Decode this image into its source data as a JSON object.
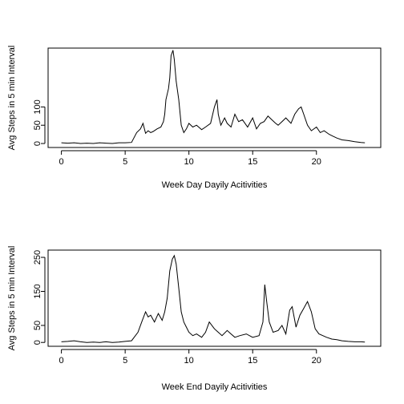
{
  "chart_data": [
    {
      "type": "line",
      "xlabel": "Week Day Dayily Acitivities",
      "ylabel": "Avg Steps in 5 min Interval",
      "xlim": [
        0,
        24
      ],
      "ylim": [
        0,
        250
      ],
      "xticks": [
        0,
        5,
        10,
        15,
        20
      ],
      "yticks": [
        0,
        50,
        100
      ],
      "grid": false,
      "series": [
        {
          "x": [
            0.0,
            0.5,
            1.0,
            1.5,
            2.0,
            2.5,
            3.0,
            3.5,
            4.0,
            4.5,
            5.0,
            5.5,
            5.9,
            6.2,
            6.4,
            6.6,
            6.8,
            7.0,
            7.2,
            7.5,
            7.8,
            8.0,
            8.1,
            8.2,
            8.4,
            8.5,
            8.6,
            8.75,
            8.85,
            9.0,
            9.2,
            9.4,
            9.6,
            9.8,
            10.0,
            10.3,
            10.6,
            11.0,
            11.3,
            11.7,
            12.0,
            12.2,
            12.3,
            12.5,
            12.8,
            13.0,
            13.3,
            13.6,
            13.9,
            14.2,
            14.6,
            15.0,
            15.3,
            15.6,
            15.9,
            16.2,
            16.5,
            16.8,
            17.0,
            17.3,
            17.6,
            18.0,
            18.3,
            18.6,
            18.8,
            19.0,
            19.3,
            19.6,
            20.0,
            20.3,
            20.6,
            21.0,
            21.3,
            21.6,
            22.0,
            22.5,
            23.0,
            23.5,
            23.8
          ],
          "y": [
            2,
            1,
            2,
            0,
            1,
            0,
            2,
            1,
            0,
            2,
            2,
            3,
            30,
            40,
            55,
            28,
            35,
            30,
            33,
            40,
            45,
            60,
            80,
            120,
            150,
            180,
            240,
            255,
            230,
            170,
            120,
            50,
            30,
            40,
            55,
            45,
            50,
            38,
            45,
            55,
            100,
            120,
            80,
            50,
            70,
            55,
            45,
            80,
            60,
            65,
            45,
            70,
            40,
            55,
            60,
            75,
            65,
            55,
            50,
            60,
            70,
            55,
            80,
            95,
            100,
            80,
            50,
            35,
            45,
            30,
            35,
            25,
            20,
            15,
            10,
            8,
            5,
            3,
            2
          ]
        }
      ]
    },
    {
      "type": "line",
      "xlabel": "Week End Dayily Acitivities",
      "ylabel": "Avg Steps in 5 min Interval",
      "xlim": [
        0,
        24
      ],
      "ylim": [
        0,
        260
      ],
      "xticks": [
        0,
        5,
        10,
        15,
        20
      ],
      "yticks": [
        0,
        50,
        150,
        250
      ],
      "grid": false,
      "series": [
        {
          "x": [
            0.0,
            0.5,
            1.0,
            1.5,
            2.0,
            2.5,
            3.0,
            3.5,
            4.0,
            4.5,
            5.0,
            5.5,
            6.0,
            6.3,
            6.6,
            6.8,
            7.0,
            7.3,
            7.6,
            7.9,
            8.1,
            8.3,
            8.5,
            8.7,
            8.85,
            9.0,
            9.2,
            9.4,
            9.6,
            9.8,
            10.0,
            10.3,
            10.6,
            11.0,
            11.3,
            11.6,
            12.0,
            12.3,
            12.6,
            13.0,
            13.3,
            13.6,
            14.0,
            14.5,
            15.0,
            15.5,
            15.8,
            15.95,
            16.1,
            16.3,
            16.6,
            17.0,
            17.3,
            17.6,
            17.9,
            18.1,
            18.4,
            18.7,
            19.0,
            19.3,
            19.6,
            19.9,
            20.2,
            20.5,
            20.8,
            21.2,
            21.6,
            22.0,
            22.5,
            23.0,
            23.5,
            23.8
          ],
          "y": [
            2,
            3,
            5,
            2,
            0,
            1,
            0,
            2,
            0,
            1,
            3,
            5,
            30,
            60,
            90,
            75,
            80,
            60,
            85,
            65,
            90,
            130,
            210,
            245,
            255,
            230,
            160,
            90,
            60,
            45,
            30,
            20,
            25,
            15,
            30,
            60,
            40,
            30,
            20,
            35,
            25,
            15,
            20,
            25,
            15,
            20,
            60,
            170,
            120,
            60,
            30,
            35,
            50,
            25,
            95,
            105,
            45,
            80,
            100,
            120,
            90,
            40,
            25,
            20,
            15,
            10,
            8,
            5,
            3,
            2,
            2,
            1
          ]
        }
      ]
    }
  ]
}
